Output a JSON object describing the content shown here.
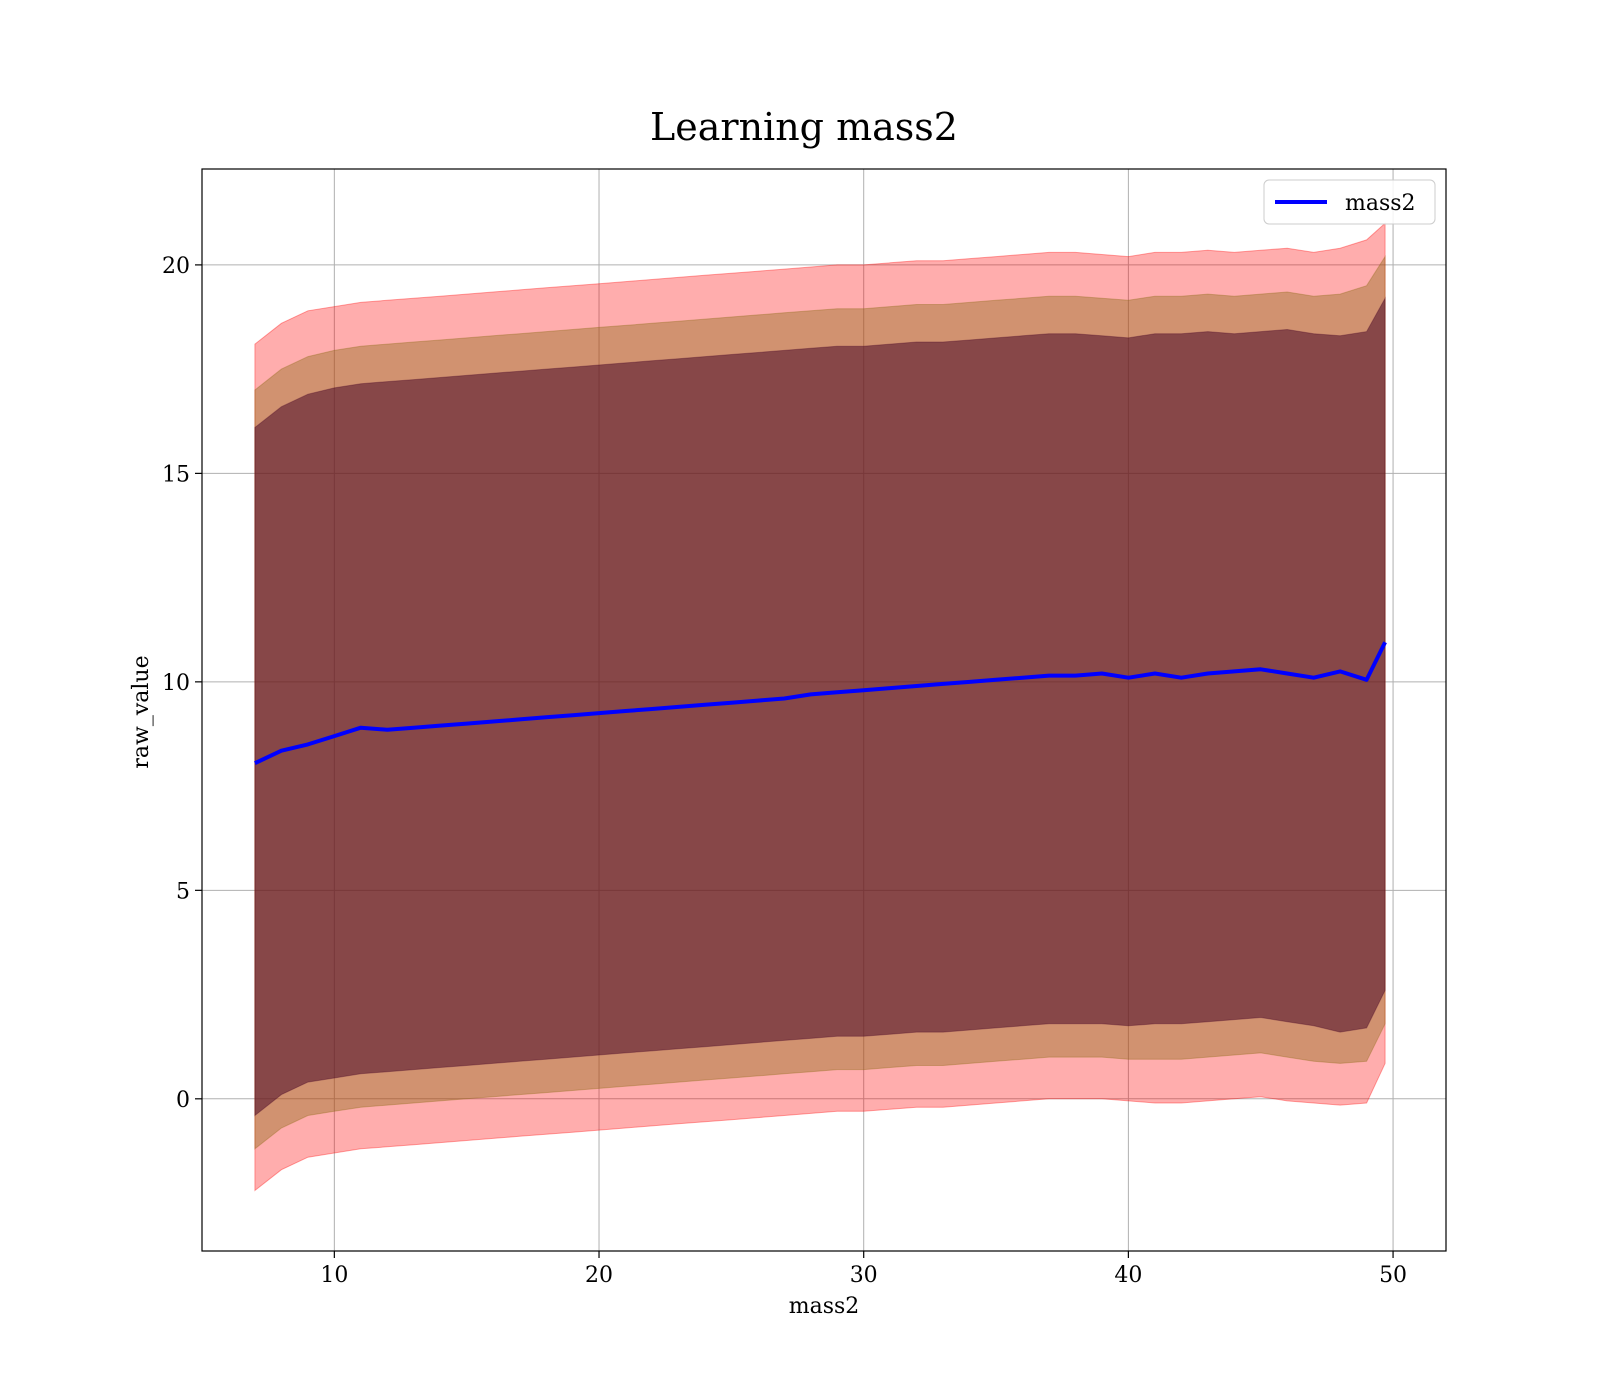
{
  "chart_data": {
    "type": "line",
    "title": "Learning mass2",
    "xlabel": "mass2",
    "ylabel": "raw_value",
    "xlim": [
      5,
      52
    ],
    "ylim": [
      -3.65,
      22.3
    ],
    "xticks": [
      10,
      20,
      30,
      40,
      50
    ],
    "yticks": [
      0,
      5,
      10,
      15,
      20
    ],
    "grid": true,
    "legend": {
      "placement": "top-right",
      "entries": [
        "mass2"
      ]
    },
    "colors": {
      "line": "#0000ff",
      "band_outer": "#ff0000",
      "band_middle": "#8b6914",
      "band_inner": "#4b0a28"
    },
    "x": [
      7,
      8,
      9,
      10,
      11,
      12,
      13,
      14,
      15,
      16,
      17,
      18,
      19,
      20,
      21,
      22,
      23,
      24,
      25,
      26,
      27,
      28,
      29,
      30,
      31,
      32,
      33,
      34,
      35,
      36,
      37,
      38,
      39,
      40,
      41,
      42,
      43,
      44,
      45,
      46,
      47,
      48,
      49,
      49.7
    ],
    "series": [
      {
        "name": "mass2",
        "values": [
          8.05,
          8.35,
          8.5,
          8.7,
          8.9,
          8.85,
          8.9,
          8.95,
          9.0,
          9.05,
          9.1,
          9.15,
          9.2,
          9.25,
          9.3,
          9.35,
          9.4,
          9.45,
          9.5,
          9.55,
          9.6,
          9.7,
          9.75,
          9.8,
          9.85,
          9.9,
          9.95,
          10.0,
          10.05,
          10.1,
          10.15,
          10.15,
          10.2,
          10.1,
          10.2,
          10.1,
          10.2,
          10.25,
          10.3,
          10.2,
          10.1,
          10.25,
          10.05,
          10.95
        ]
      }
    ],
    "bands": [
      {
        "layer": "outer",
        "upper": [
          18.1,
          18.6,
          18.9,
          19.0,
          19.1,
          19.15,
          19.2,
          19.25,
          19.3,
          19.35,
          19.4,
          19.45,
          19.5,
          19.55,
          19.6,
          19.65,
          19.7,
          19.75,
          19.8,
          19.85,
          19.9,
          19.95,
          20.0,
          20.0,
          20.05,
          20.1,
          20.1,
          20.15,
          20.2,
          20.25,
          20.3,
          20.3,
          20.25,
          20.2,
          20.3,
          20.3,
          20.35,
          20.3,
          20.35,
          20.4,
          20.3,
          20.4,
          20.6,
          21.0
        ],
        "lower": [
          -2.2,
          -1.7,
          -1.4,
          -1.3,
          -1.2,
          -1.15,
          -1.1,
          -1.05,
          -1.0,
          -0.95,
          -0.9,
          -0.85,
          -0.8,
          -0.75,
          -0.7,
          -0.65,
          -0.6,
          -0.55,
          -0.5,
          -0.45,
          -0.4,
          -0.35,
          -0.3,
          -0.3,
          -0.25,
          -0.2,
          -0.2,
          -0.15,
          -0.1,
          -0.05,
          0.0,
          0.0,
          0.0,
          -0.05,
          -0.1,
          -0.1,
          -0.05,
          0.0,
          0.05,
          -0.05,
          -0.1,
          -0.15,
          -0.1,
          0.85
        ]
      },
      {
        "layer": "middle",
        "upper": [
          17.0,
          17.5,
          17.8,
          17.95,
          18.05,
          18.1,
          18.15,
          18.2,
          18.25,
          18.3,
          18.35,
          18.4,
          18.45,
          18.5,
          18.55,
          18.6,
          18.65,
          18.7,
          18.75,
          18.8,
          18.85,
          18.9,
          18.95,
          18.95,
          19.0,
          19.05,
          19.05,
          19.1,
          19.15,
          19.2,
          19.25,
          19.25,
          19.2,
          19.15,
          19.25,
          19.25,
          19.3,
          19.25,
          19.3,
          19.35,
          19.25,
          19.3,
          19.5,
          20.2
        ],
        "lower": [
          -1.2,
          -0.7,
          -0.4,
          -0.3,
          -0.2,
          -0.15,
          -0.1,
          -0.05,
          0.0,
          0.05,
          0.1,
          0.15,
          0.2,
          0.25,
          0.3,
          0.35,
          0.4,
          0.45,
          0.5,
          0.55,
          0.6,
          0.65,
          0.7,
          0.7,
          0.75,
          0.8,
          0.8,
          0.85,
          0.9,
          0.95,
          1.0,
          1.0,
          1.0,
          0.95,
          0.95,
          0.95,
          1.0,
          1.05,
          1.1,
          1.0,
          0.9,
          0.85,
          0.9,
          1.8
        ]
      },
      {
        "layer": "inner",
        "upper": [
          16.1,
          16.6,
          16.9,
          17.05,
          17.15,
          17.2,
          17.25,
          17.3,
          17.35,
          17.4,
          17.45,
          17.5,
          17.55,
          17.6,
          17.65,
          17.7,
          17.75,
          17.8,
          17.85,
          17.9,
          17.95,
          18.0,
          18.05,
          18.05,
          18.1,
          18.15,
          18.15,
          18.2,
          18.25,
          18.3,
          18.35,
          18.35,
          18.3,
          18.25,
          18.35,
          18.35,
          18.4,
          18.35,
          18.4,
          18.45,
          18.35,
          18.3,
          18.4,
          19.2
        ],
        "lower": [
          -0.4,
          0.1,
          0.4,
          0.5,
          0.6,
          0.65,
          0.7,
          0.75,
          0.8,
          0.85,
          0.9,
          0.95,
          1.0,
          1.05,
          1.1,
          1.15,
          1.2,
          1.25,
          1.3,
          1.35,
          1.4,
          1.45,
          1.5,
          1.5,
          1.55,
          1.6,
          1.6,
          1.65,
          1.7,
          1.75,
          1.8,
          1.8,
          1.8,
          1.75,
          1.8,
          1.8,
          1.85,
          1.9,
          1.95,
          1.85,
          1.75,
          1.6,
          1.7,
          2.6
        ]
      }
    ]
  }
}
